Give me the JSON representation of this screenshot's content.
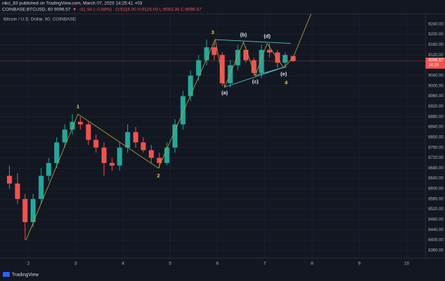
{
  "header": {
    "publisher": "niko_83 published on TradingView.com, March 07, 2020 14:25:41 +03",
    "symbol": "COINBASE:BTCUSD, 60",
    "price": "9096.57",
    "change": "▼ −81.94 (−0.68%)",
    "ohlc": "O:9116.00 H:9116.00 L:9093.36 C:9096.57"
  },
  "footer": {
    "brand": "TradingView"
  },
  "chart_data": {
    "type": "candlestick",
    "title": "Bitcoin / U.S. Dollar, 60, COINBASE",
    "up_color": "#26a69a",
    "down_color": "#ef5350",
    "grid": true,
    "x": [
      1.6,
      1.77,
      1.93,
      2.1,
      2.27,
      2.43,
      2.6,
      2.77,
      2.93,
      3.1,
      3.27,
      3.43,
      3.6,
      3.77,
      3.93,
      4.1,
      4.27,
      4.43,
      4.6,
      4.77,
      4.93,
      5.1,
      5.27,
      5.43,
      5.6,
      5.77,
      5.93,
      6.1,
      6.27,
      6.43,
      6.6,
      6.77,
      6.93,
      7.1,
      7.27,
      7.43,
      7.6
    ],
    "open": [
      8650,
      8620,
      8560,
      8470,
      8560,
      8650,
      8700,
      8780,
      8830,
      8860,
      8850,
      8790,
      8760,
      8700,
      8690,
      8760,
      8820,
      8780,
      8750,
      8720,
      8700,
      8760,
      8850,
      8960,
      9040,
      9100,
      9150,
      9120,
      9010,
      9080,
      9140,
      9100,
      9050,
      9140,
      9130,
      9090,
      9116
    ],
    "high": [
      8690,
      8660,
      8580,
      8580,
      8680,
      8720,
      8800,
      8850,
      8890,
      8880,
      8860,
      8810,
      8780,
      8720,
      8780,
      8850,
      8840,
      8800,
      8770,
      8740,
      8780,
      8870,
      8980,
      9060,
      9120,
      9180,
      9170,
      9130,
      9100,
      9160,
      9150,
      9110,
      9160,
      9165,
      9140,
      9130,
      9116
    ],
    "low": [
      8600,
      8540,
      8400,
      8450,
      8540,
      8630,
      8680,
      8760,
      8810,
      8830,
      8770,
      8740,
      8650,
      8670,
      8670,
      8740,
      8760,
      8740,
      8700,
      8680,
      8690,
      8740,
      8830,
      8940,
      9020,
      9080,
      9100,
      9000,
      8995,
      9060,
      9090,
      9040,
      9030,
      9110,
      9070,
      9070,
      9093.36
    ],
    "close": [
      8620,
      8560,
      8470,
      8560,
      8650,
      8700,
      8780,
      8830,
      8860,
      8850,
      8790,
      8760,
      8700,
      8690,
      8760,
      8820,
      8780,
      8750,
      8720,
      8700,
      8760,
      8850,
      8960,
      9040,
      9100,
      9150,
      9120,
      9010,
      9080,
      9140,
      9100,
      9050,
      9140,
      9130,
      9090,
      9120,
      9096.57
    ],
    "xlim": [
      1.4,
      10.4
    ],
    "xticks": [
      2,
      3,
      4,
      5,
      6,
      7,
      8,
      9,
      10
    ],
    "ylim": [
      8330,
      9280
    ],
    "yticks": [
      {
        "value": 9240,
        "label": "9240.00"
      },
      {
        "value": 9200,
        "label": "9200.00"
      },
      {
        "value": 9160,
        "label": "9160.00"
      },
      {
        "value": 9120,
        "label": "9120.00"
      },
      {
        "value": 9080,
        "label": "9080.00"
      },
      {
        "value": 9040,
        "label": "9040.00"
      },
      {
        "value": 9000,
        "label": "9000.00"
      },
      {
        "value": 8960,
        "label": "8960.00"
      },
      {
        "value": 8920,
        "label": "8920.00"
      },
      {
        "value": 8880,
        "label": "8880.00"
      },
      {
        "value": 8840,
        "label": "8840.00"
      },
      {
        "value": 8800,
        "label": "8800.00"
      },
      {
        "value": 8760,
        "label": "8760.00"
      },
      {
        "value": 8720,
        "label": "8720.00"
      },
      {
        "value": 8680,
        "label": "8680.00"
      },
      {
        "value": 8640,
        "label": "8640.00"
      },
      {
        "value": 8600,
        "label": "8600.00"
      },
      {
        "value": 8560,
        "label": "8560.00"
      },
      {
        "value": 8520,
        "label": "8520.00"
      },
      {
        "value": 8480,
        "label": "8480.00"
      },
      {
        "value": 8440,
        "label": "8440.00"
      },
      {
        "value": 8400,
        "label": "8400.00"
      },
      {
        "value": 8360,
        "label": "8360.00"
      }
    ],
    "last_price_label": "9096.57",
    "countdown": "34:20",
    "last_price_color": "#ef5350",
    "lines": [
      {
        "color": "#a8a03c",
        "x": [
          1.95,
          3.05,
          4.75,
          5.95,
          6.15,
          6.55,
          6.8,
          7.05,
          7.4,
          7.6,
          8.0
        ],
        "y": [
          8400,
          8890,
          8680,
          9180,
          8995,
          9170,
          9040,
          9165,
          9070,
          9110,
          9290
        ]
      },
      {
        "color": "#4fc3c0",
        "x": [
          5.95,
          7.55
        ],
        "y": [
          9180,
          9165
        ]
      },
      {
        "color": "#4fc3c0",
        "x": [
          6.15,
          7.45
        ],
        "y": [
          8995,
          9075
        ]
      },
      {
        "color": "#4fc3c0",
        "x": [
          6.8,
          7.45
        ],
        "y": [
          9040,
          9075
        ]
      }
    ],
    "annotations": [
      {
        "text": "1",
        "color": "#f0d43a",
        "x": 3.05,
        "y": 8918
      },
      {
        "text": "2",
        "color": "#f0d43a",
        "x": 4.75,
        "y": 8650
      },
      {
        "text": "3",
        "color": "#f0d43a",
        "x": 5.9,
        "y": 9207
      },
      {
        "text": "4",
        "color": "#f0d43a",
        "x": 7.45,
        "y": 9012
      },
      {
        "text": "(a)",
        "color": "#e0e3eb",
        "x": 6.15,
        "y": 8972
      },
      {
        "text": "(b)",
        "color": "#e0e3eb",
        "x": 6.55,
        "y": 9197
      },
      {
        "text": "(c)",
        "color": "#e0e3eb",
        "x": 6.8,
        "y": 9015
      },
      {
        "text": "(d)",
        "color": "#e0e3eb",
        "x": 7.05,
        "y": 9192
      },
      {
        "text": "(e)",
        "color": "#e0e3eb",
        "x": 7.4,
        "y": 9045
      }
    ]
  }
}
